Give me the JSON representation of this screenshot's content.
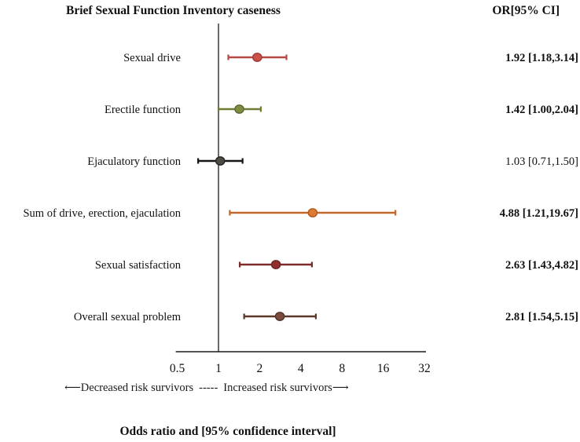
{
  "title": "Brief Sexual Function Inventory caseness",
  "or_header": "OR[95% CI]",
  "footer": {
    "left_arrow": "⟵",
    "decreased_label": "Decreased risk survivors",
    "separator": "-----",
    "increased_label": "Increased risk survivors",
    "right_arrow": "⟶",
    "caption": "Odds ratio and [95% confidence interval]"
  },
  "chart_data": {
    "type": "scatter",
    "subtype": "forest-plot",
    "title": "Brief Sexual Function Inventory caseness",
    "xlabel": "Odds ratio and [95% confidence interval]",
    "x_scale": "log2",
    "x_range": [
      0.5,
      32
    ],
    "x_ticks": [
      0.5,
      1,
      2,
      4,
      8,
      16,
      32
    ],
    "reference_line": 1,
    "grid": false,
    "legend": "none",
    "axis_color": "#1a1a1a",
    "rows": [
      {
        "label": "Sexual drive",
        "or": 1.92,
        "ci_low": 1.18,
        "ci_high": 3.14,
        "display": "1.92 [1.18,3.14]",
        "bold": true,
        "color": {
          "fill": "#CB514B",
          "stroke": "#9E3B36",
          "line": "#B74944"
        }
      },
      {
        "label": "Erectile function",
        "or": 1.42,
        "ci_low": 1.0,
        "ci_high": 2.04,
        "display": "1.42 [1.00,2.04]",
        "bold": true,
        "color": {
          "fill": "#7E8C44",
          "stroke": "#5D6A2F",
          "line": "#6E7C37"
        }
      },
      {
        "label": "Ejaculatory function",
        "or": 1.03,
        "ci_low": 0.71,
        "ci_high": 1.5,
        "display": "1.03 [0.71,1.50]",
        "bold": false,
        "color": {
          "fill": "#4F4B45",
          "stroke": "#262626",
          "line": "#161616"
        }
      },
      {
        "label": "Sum of drive, erection, ejaculation",
        "or": 4.88,
        "ci_low": 1.21,
        "ci_high": 19.67,
        "display": "4.88 [1.21,19.67]",
        "bold": true,
        "color": {
          "fill": "#DF7A35",
          "stroke": "#AE5A1E",
          "line": "#C4672B"
        }
      },
      {
        "label": "Sexual satisfaction",
        "or": 2.63,
        "ci_low": 1.43,
        "ci_high": 4.82,
        "display": "2.63 [1.43,4.82]",
        "bold": true,
        "color": {
          "fill": "#8D302F",
          "stroke": "#6E2322",
          "line": "#7D2A28"
        }
      },
      {
        "label": "Overall sexual problem",
        "or": 2.81,
        "ci_low": 1.54,
        "ci_high": 5.15,
        "display": "2.81 [1.54,5.15]",
        "bold": true,
        "color": {
          "fill": "#7B4C3B",
          "stroke": "#543228",
          "line": "#5C382B"
        }
      }
    ]
  }
}
